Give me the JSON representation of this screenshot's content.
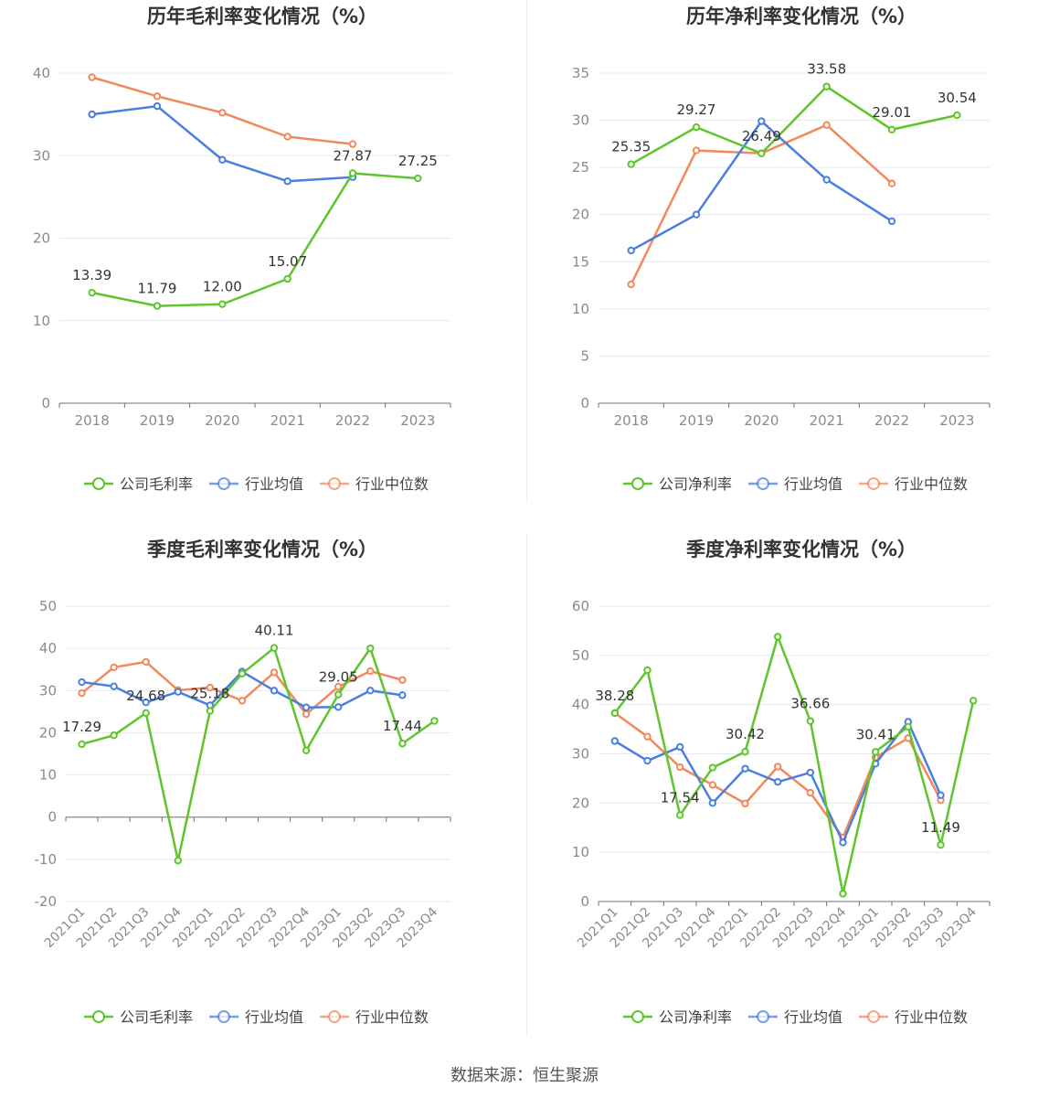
{
  "colors": {
    "company": "#5ec52c",
    "industry_avg": "#4a7fe0",
    "industry_median": "#f2895c"
  },
  "footer": {
    "source": "数据来源：恒生聚源"
  },
  "chart_data": [
    {
      "type": "line",
      "title": "历年毛利率变化情况（%）",
      "categories": [
        "2018",
        "2019",
        "2020",
        "2021",
        "2022",
        "2023"
      ],
      "ylim": [
        0,
        40
      ],
      "yticks": [
        0,
        10,
        20,
        30,
        40
      ],
      "series": [
        {
          "name": "公司毛利率",
          "values": [
            13.39,
            11.79,
            12.0,
            15.07,
            27.87,
            27.25
          ],
          "labels": [
            "13.39",
            "11.79",
            "12.00",
            "15.07",
            "27.87",
            "27.25"
          ]
        },
        {
          "name": "行业均值",
          "values": [
            35.0,
            36.0,
            29.5,
            26.9,
            27.4,
            null
          ]
        },
        {
          "name": "行业中位数",
          "values": [
            39.5,
            37.2,
            35.2,
            32.3,
            31.4,
            null
          ]
        }
      ]
    },
    {
      "type": "line",
      "title": "历年净利率变化情况（%）",
      "categories": [
        "2018",
        "2019",
        "2020",
        "2021",
        "2022",
        "2023"
      ],
      "ylim": [
        0,
        35
      ],
      "yticks": [
        0,
        5,
        10,
        15,
        20,
        25,
        30,
        35
      ],
      "series": [
        {
          "name": "公司净利率",
          "values": [
            25.35,
            29.27,
            26.49,
            33.58,
            29.01,
            30.54
          ],
          "labels": [
            "25.35",
            "29.27",
            "26.49",
            "33.58",
            "29.01",
            "30.54"
          ]
        },
        {
          "name": "行业均值",
          "values": [
            16.2,
            20.0,
            29.9,
            23.7,
            19.3,
            null
          ]
        },
        {
          "name": "行业中位数",
          "values": [
            12.6,
            26.8,
            26.5,
            29.5,
            23.3,
            null
          ]
        }
      ]
    },
    {
      "type": "line",
      "title": "季度毛利率变化情况（%）",
      "categories": [
        "2021Q1",
        "2021Q2",
        "2021Q3",
        "2021Q4",
        "2022Q1",
        "2022Q2",
        "2022Q3",
        "2022Q4",
        "2023Q1",
        "2023Q2",
        "2023Q3",
        "2023Q4"
      ],
      "ylim": [
        -20,
        50
      ],
      "yticks": [
        -20,
        -10,
        0,
        10,
        20,
        30,
        40,
        50
      ],
      "series": [
        {
          "name": "公司毛利率",
          "values": [
            17.29,
            19.4,
            24.68,
            -10.3,
            25.18,
            34.0,
            40.11,
            15.8,
            29.05,
            40.0,
            17.44,
            22.8
          ],
          "labels": [
            "17.29",
            null,
            "24.68",
            null,
            "25.18",
            null,
            "40.11",
            null,
            "29.05",
            null,
            "17.44",
            null
          ]
        },
        {
          "name": "行业均值",
          "values": [
            32.0,
            31.0,
            27.2,
            29.7,
            26.5,
            34.5,
            30.0,
            26.0,
            26.1,
            30.0,
            28.9,
            null
          ]
        },
        {
          "name": "行业中位数",
          "values": [
            29.4,
            35.5,
            36.8,
            30.1,
            30.7,
            27.6,
            34.3,
            24.4,
            30.9,
            34.6,
            32.5,
            null
          ]
        }
      ]
    },
    {
      "type": "line",
      "title": "季度净利率变化情况（%）",
      "categories": [
        "2021Q1",
        "2021Q2",
        "2021Q3",
        "2021Q4",
        "2022Q1",
        "2022Q2",
        "2022Q3",
        "2022Q4",
        "2023Q1",
        "2023Q2",
        "2023Q3",
        "2023Q4"
      ],
      "ylim": [
        0,
        60
      ],
      "yticks": [
        0,
        10,
        20,
        30,
        40,
        50,
        60
      ],
      "series": [
        {
          "name": "公司净利率",
          "values": [
            38.28,
            47.0,
            17.54,
            27.2,
            30.42,
            53.8,
            36.66,
            1.6,
            30.41,
            35.5,
            11.49,
            40.8
          ],
          "labels": [
            "38.28",
            null,
            "17.54",
            null,
            "30.42",
            null,
            "36.66",
            null,
            "30.41",
            null,
            "11.49",
            null
          ]
        },
        {
          "name": "行业均值",
          "values": [
            32.6,
            28.6,
            31.4,
            20.0,
            27.0,
            24.3,
            26.2,
            12.0,
            28.0,
            36.5,
            21.6,
            null
          ]
        },
        {
          "name": "行业中位数",
          "values": [
            38.3,
            33.5,
            27.3,
            23.7,
            19.9,
            27.4,
            22.1,
            13.0,
            29.3,
            33.2,
            20.6,
            null
          ]
        }
      ]
    }
  ]
}
